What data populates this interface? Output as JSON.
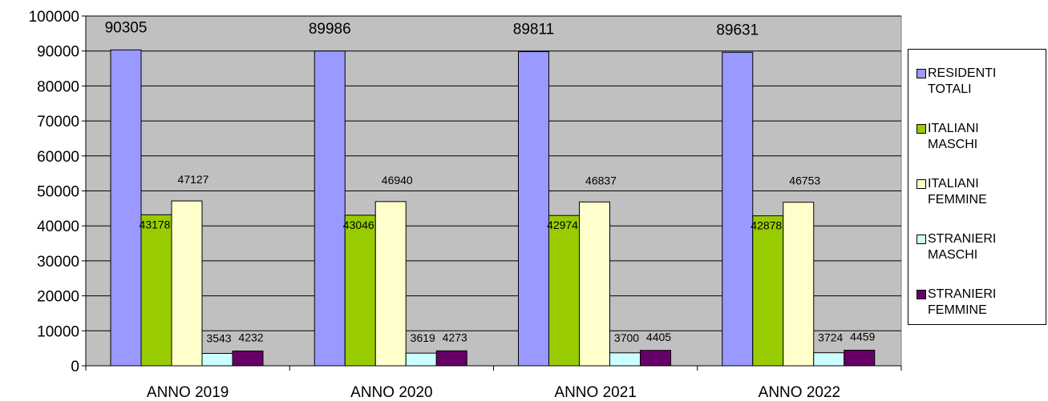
{
  "chart_data": {
    "type": "bar",
    "categories": [
      "ANNO 2019",
      "ANNO 2020",
      "ANNO 2021",
      "ANNO 2022"
    ],
    "series": [
      {
        "name": "RESIDENTI TOTALI",
        "values": [
          90305,
          89986,
          89811,
          89631
        ],
        "color": "#9999ff"
      },
      {
        "name": "ITALIANI MASCHI",
        "values": [
          43178,
          43046,
          42974,
          42878
        ],
        "color": "#99cc00"
      },
      {
        "name": "ITALIANI FEMMINE",
        "values": [
          47127,
          46940,
          46837,
          46753
        ],
        "color": "#ffffcc"
      },
      {
        "name": "STRANIERI MASCHI",
        "values": [
          3543,
          3619,
          3700,
          3724
        ],
        "color": "#ccffff"
      },
      {
        "name": "STRANIERI FEMMINE",
        "values": [
          4232,
          4273,
          4405,
          4459
        ],
        "color": "#660066"
      }
    ],
    "y_ticks": [
      "0",
      "10000",
      "20000",
      "30000",
      "40000",
      "50000",
      "60000",
      "70000",
      "80000",
      "90000",
      "100000"
    ],
    "ylim": [
      0,
      100000
    ],
    "grid": true,
    "plot_background": "#c0c0c0",
    "legend_position": "right",
    "title": "",
    "xlabel": "",
    "ylabel": ""
  }
}
